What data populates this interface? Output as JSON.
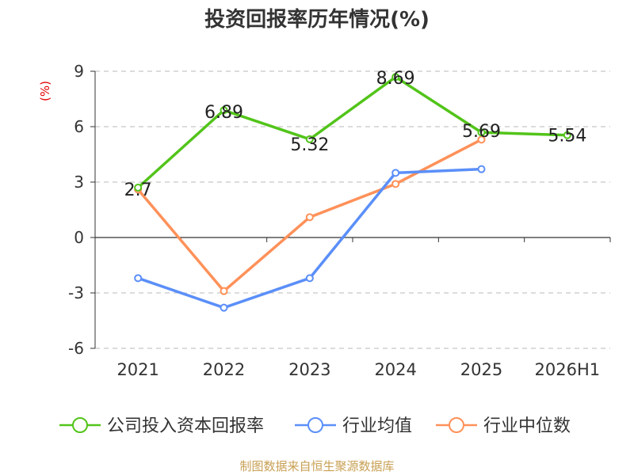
{
  "chart_data": {
    "type": "line",
    "title": "投资回报率历年情况(%)",
    "ylabel": "(%)",
    "xlabel": "",
    "categories": [
      "2021",
      "2022",
      "2023",
      "2024",
      "2025",
      "2026H1"
    ],
    "ylim": [
      -6,
      9
    ],
    "yticks": [
      9,
      6,
      3,
      0,
      -3,
      -6
    ],
    "grid": "horizontal dashed",
    "legend_position": "bottom",
    "series": [
      {
        "name": "公司投入资本回报率",
        "color": "#52c41a",
        "values": [
          2.7,
          6.89,
          5.32,
          8.69,
          5.69,
          5.54
        ],
        "labels": [
          "2.7",
          "6.89",
          "5.32",
          "8.69",
          "5.69",
          "5.54"
        ]
      },
      {
        "name": "行业均值",
        "color": "#5b8ff9",
        "values": [
          -2.2,
          -3.8,
          -2.2,
          3.5,
          3.7,
          null
        ]
      },
      {
        "name": "行业中位数",
        "color": "#ff9159",
        "values": [
          2.6,
          -2.9,
          1.1,
          2.9,
          5.3,
          null
        ]
      }
    ]
  },
  "source": "制图数据来自恒生聚源数据库"
}
